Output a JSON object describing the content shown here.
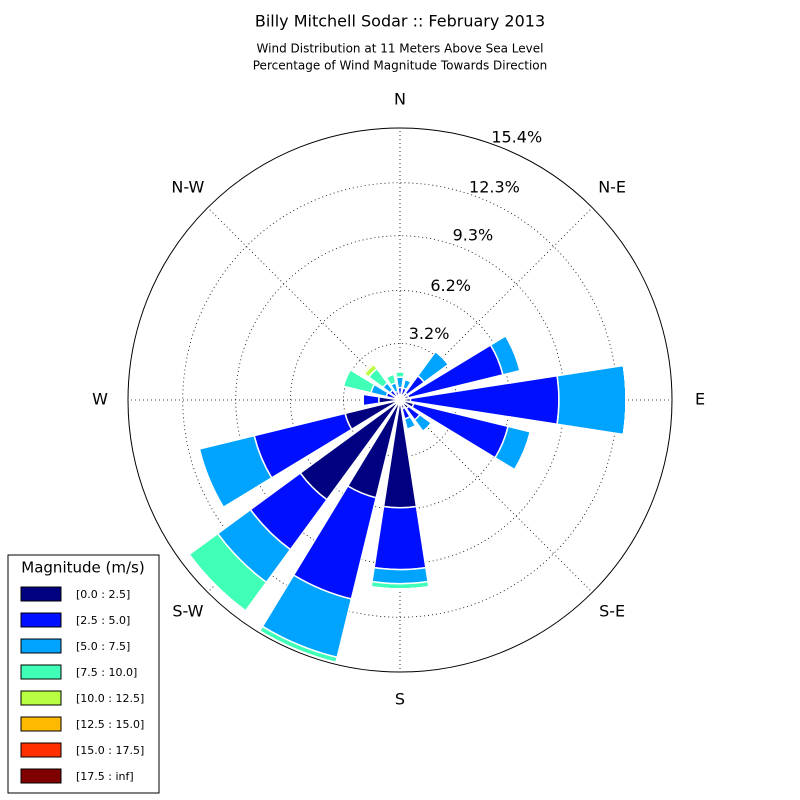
{
  "chart_data": {
    "type": "windrose",
    "title": "Billy Mitchell Sodar :: February 2013",
    "subtitle": [
      "Wind Distribution at 11 Meters Above Sea Level",
      "Percentage of Wind Magnitude Towards Direction"
    ],
    "x": [
      0,
      22.5,
      45,
      67.5,
      90,
      112.5,
      135,
      157.5,
      180,
      202.5,
      225,
      247.5,
      270,
      292.5,
      315,
      337.5
    ],
    "xticks": [
      {
        "value": 0,
        "label": "N"
      },
      {
        "value": 45,
        "label": "N-E"
      },
      {
        "value": 90,
        "label": "E"
      },
      {
        "value": 135,
        "label": "S-E"
      },
      {
        "value": 180,
        "label": "S"
      },
      {
        "value": 225,
        "label": "S-W"
      },
      {
        "value": 270,
        "label": "W"
      },
      {
        "value": 315,
        "label": "N-W"
      }
    ],
    "ylim": [
      0,
      15.4
    ],
    "yticks": [
      {
        "value": 3.2,
        "label": "3.2%"
      },
      {
        "value": 6.2,
        "label": "6.2%"
      },
      {
        "value": 9.3,
        "label": "9.3%"
      },
      {
        "value": 12.3,
        "label": "12.3%"
      },
      {
        "value": 15.4,
        "label": "15.4%"
      }
    ],
    "grid": true,
    "legend": {
      "title": "Magnitude (m/s)",
      "position": "lower-left"
    },
    "series": [
      {
        "name": "[0.0 : 2.5]",
        "color": "#000080",
        "values": [
          0.3,
          0.3,
          0.5,
          0.5,
          0.6,
          0.8,
          0.6,
          0.5,
          6.1,
          5.7,
          7.0,
          3.2,
          1.2,
          0.3,
          0.3,
          0.2
        ]
      },
      {
        "name": "[2.5 : 5.0]",
        "color": "#0010ff",
        "values": [
          0.4,
          0.4,
          1.2,
          5.5,
          8.4,
          5.5,
          0.8,
          0.6,
          3.5,
          5.9,
          3.5,
          5.3,
          0.9,
          0.5,
          0.4,
          0.3
        ]
      },
      {
        "name": "[5.0 : 7.5]",
        "color": "#00a4ff",
        "values": [
          0.6,
          0.5,
          1.7,
          1.0,
          3.8,
          1.3,
          0.8,
          0.6,
          0.8,
          3.4,
          2.3,
          3.2,
          0,
          0.9,
          0.5,
          0.5
        ]
      },
      {
        "name": "[7.5 : 10.0]",
        "color": "#40ffb7",
        "values": [
          0.3,
          0,
          0,
          0,
          0,
          0,
          0,
          0,
          0.3,
          0.3,
          2.0,
          0,
          0,
          1.6,
          1.0,
          0.5
        ]
      },
      {
        "name": "[10.0 : 12.5]",
        "color": "#b7ff40",
        "values": [
          0,
          0,
          0,
          0,
          0,
          0,
          0,
          0,
          0,
          0,
          0,
          0,
          0,
          0,
          0.3,
          0
        ]
      },
      {
        "name": "[12.5 : 15.0]",
        "color": "#ffb900",
        "values": [
          0,
          0,
          0,
          0,
          0,
          0,
          0,
          0,
          0,
          0,
          0,
          0,
          0,
          0,
          0.1,
          0
        ]
      },
      {
        "name": "[15.0 : 17.5]",
        "color": "#ff3000",
        "values": [
          0,
          0,
          0,
          0,
          0,
          0,
          0,
          0,
          0,
          0,
          0,
          0,
          0,
          0,
          0,
          0
        ]
      },
      {
        "name": "[17.5 : inf]",
        "color": "#800000",
        "values": [
          0,
          0,
          0,
          0,
          0,
          0,
          0,
          0,
          0,
          0,
          0,
          0,
          0,
          0,
          0,
          0
        ]
      }
    ]
  }
}
